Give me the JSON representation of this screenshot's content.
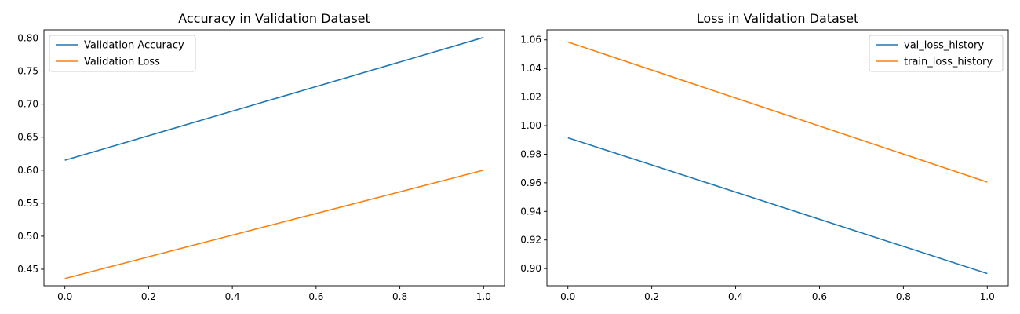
{
  "chart_data": [
    {
      "type": "line",
      "title": "Accuracy in Validation Dataset",
      "xlabel": "",
      "ylabel": "",
      "xlim": [
        -0.05,
        1.05
      ],
      "ylim": [
        0.425,
        0.8125
      ],
      "xticks": [
        "0.0",
        "0.2",
        "0.4",
        "0.6",
        "0.8",
        "1.0"
      ],
      "xtick_values": [
        0.0,
        0.2,
        0.4,
        0.6,
        0.8,
        1.0
      ],
      "yticks": [
        "0.45",
        "0.50",
        "0.55",
        "0.60",
        "0.65",
        "0.70",
        "0.75",
        "0.80"
      ],
      "ytick_values": [
        0.45,
        0.5,
        0.55,
        0.6,
        0.65,
        0.7,
        0.75,
        0.8
      ],
      "grid": false,
      "legend": "upper-left",
      "series": [
        {
          "name": "Validation Accuracy",
          "color": "#1f77b4",
          "x": [
            0,
            1
          ],
          "y": [
            0.615,
            0.801
          ]
        },
        {
          "name": "Validation Loss",
          "color": "#ff7f0e",
          "x": [
            0,
            1
          ],
          "y": [
            0.436,
            0.6
          ]
        }
      ]
    },
    {
      "type": "line",
      "title": "Loss in Validation Dataset",
      "xlabel": "",
      "ylabel": "",
      "xlim": [
        -0.05,
        1.05
      ],
      "ylim": [
        0.888,
        1.067
      ],
      "xticks": [
        "0.0",
        "0.2",
        "0.4",
        "0.6",
        "0.8",
        "1.0"
      ],
      "xtick_values": [
        0.0,
        0.2,
        0.4,
        0.6,
        0.8,
        1.0
      ],
      "yticks": [
        "0.90",
        "0.92",
        "0.94",
        "0.96",
        "0.98",
        "1.00",
        "1.02",
        "1.04",
        "1.06"
      ],
      "ytick_values": [
        0.9,
        0.92,
        0.94,
        0.96,
        0.98,
        1.0,
        1.02,
        1.04,
        1.06
      ],
      "grid": false,
      "legend": "upper-right",
      "series": [
        {
          "name": "val_loss_history",
          "color": "#1f77b4",
          "x": [
            0,
            1
          ],
          "y": [
            0.9915,
            0.8965
          ]
        },
        {
          "name": "train_loss_history",
          "color": "#ff7f0e",
          "x": [
            0,
            1
          ],
          "y": [
            1.0585,
            0.9605
          ]
        }
      ]
    }
  ]
}
